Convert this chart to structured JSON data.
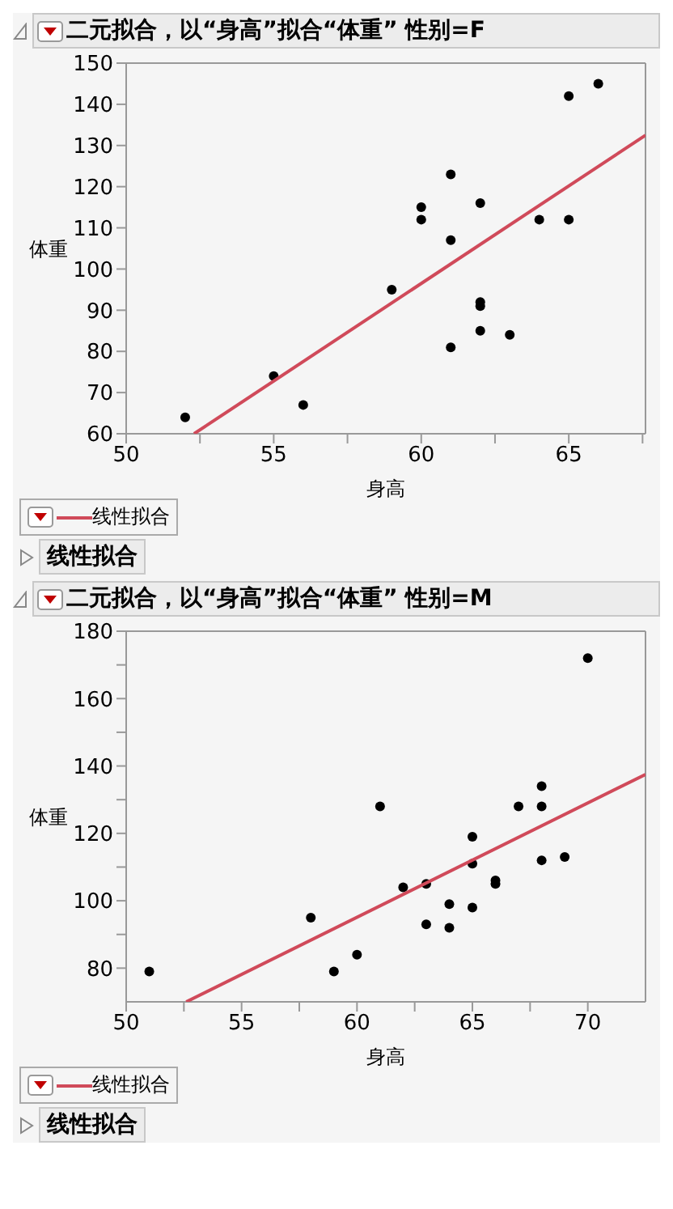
{
  "chart_data": [
    {
      "type": "scatter",
      "title": "二元拟合，以“身高”拟合“体重” 性别=F",
      "xlabel": "身高",
      "ylabel": "体重",
      "xlim": [
        50,
        67.6
      ],
      "xticks": [
        50,
        {
          "value": 52.5,
          "label": null
        },
        55,
        {
          "value": 57.5,
          "label": null
        },
        60,
        {
          "value": 62.5,
          "label": null
        },
        65,
        {
          "value": 67.5,
          "label": null
        }
      ],
      "ylim": [
        60,
        150
      ],
      "yticks": [
        60,
        70,
        80,
        90,
        100,
        110,
        120,
        130,
        140,
        150
      ],
      "legend": "bottom left",
      "annotations": [
        "线性拟合"
      ],
      "series": [
        {
          "marker": "circle",
          "color": "#000000",
          "x": [
            52,
            55,
            56,
            59,
            60,
            60,
            61,
            61,
            61,
            62,
            62,
            62,
            62,
            63,
            64,
            65,
            65,
            66
          ],
          "values": [
            64,
            74,
            67,
            95,
            115,
            112,
            123,
            107,
            81,
            116,
            92,
            91,
            85,
            84,
            112,
            142,
            112,
            145
          ]
        },
        {
          "type": "line",
          "marker": "none",
          "name": "线性拟合",
          "color": "#d04a5a",
          "x": [
            52.3,
            67.6
          ],
          "values": [
            60,
            132.5
          ]
        }
      ]
    },
    {
      "type": "scatter",
      "title": "二元拟合，以“身高”拟合“体重” 性别=M",
      "xlabel": "身高",
      "ylabel": "体重",
      "xlim": [
        50,
        72.5
      ],
      "xticks": [
        50,
        {
          "value": 52.5,
          "label": null
        },
        55,
        {
          "value": 57.5,
          "label": null
        },
        60,
        {
          "value": 62.5,
          "label": null
        },
        65,
        {
          "value": 67.5,
          "label": null
        },
        70
      ],
      "ylim": [
        70,
        180
      ],
      "yticks": [
        80,
        {
          "value": 90,
          "label": null
        },
        100,
        {
          "value": 110,
          "label": null
        },
        120,
        {
          "value": 130,
          "label": null
        },
        140,
        {
          "value": 150,
          "label": null
        },
        160,
        {
          "value": 170,
          "label": null
        },
        180
      ],
      "legend": "bottom left",
      "annotations": [
        "线性拟合"
      ],
      "series": [
        {
          "marker": "circle",
          "color": "#000000",
          "x": [
            51,
            58,
            59,
            60,
            61,
            62,
            63,
            63,
            64,
            64,
            65,
            65,
            65,
            66,
            66,
            67,
            68,
            68,
            68,
            69,
            70
          ],
          "values": [
            79,
            95,
            79,
            84,
            128,
            104,
            105,
            93,
            99,
            92,
            119,
            111,
            98,
            106,
            105,
            128,
            134,
            128,
            112,
            113,
            172
          ]
        },
        {
          "type": "line",
          "marker": "none",
          "name": "线性拟合",
          "color": "#d04a5a",
          "x": [
            52.6,
            72.5
          ],
          "values": [
            70,
            137.5
          ]
        }
      ]
    }
  ]
}
